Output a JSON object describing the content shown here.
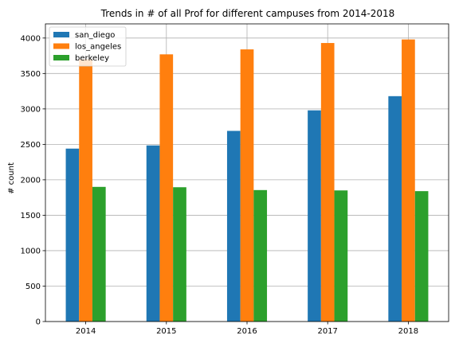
{
  "chart_data": {
    "type": "bar",
    "title": "Trends in # of all Prof for different campuses from 2014-2018",
    "xlabel": "",
    "ylabel": "# count",
    "categories": [
      "2014",
      "2015",
      "2016",
      "2017",
      "2018"
    ],
    "series": [
      {
        "name": "san_diego",
        "color": "#1f77b4",
        "values": [
          2440,
          2485,
          2690,
          2980,
          3180
        ]
      },
      {
        "name": "los_angeles",
        "color": "#ff7f0e",
        "values": [
          3700,
          3770,
          3840,
          3930,
          3980
        ]
      },
      {
        "name": "berkeley",
        "color": "#2ca02c",
        "values": [
          1900,
          1895,
          1855,
          1850,
          1840
        ]
      }
    ],
    "ylim": [
      0,
      4200
    ],
    "yticks": [
      0,
      500,
      1000,
      1500,
      2000,
      2500,
      3000,
      3500,
      4000
    ],
    "grid": true,
    "legend_position": "top-left"
  }
}
